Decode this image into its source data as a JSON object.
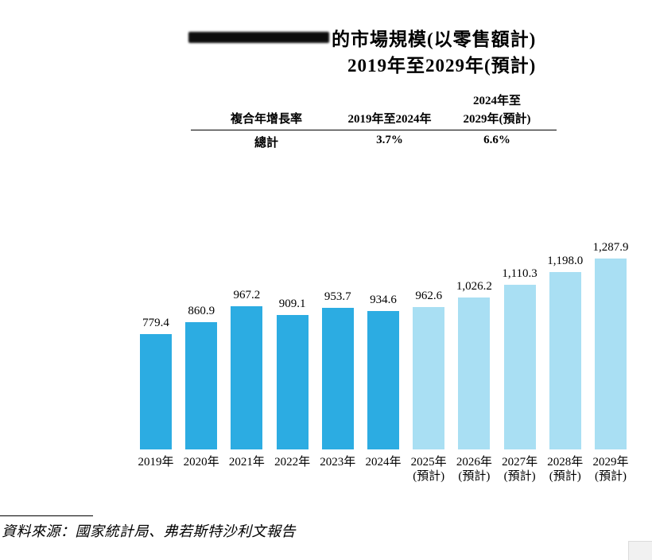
{
  "title": {
    "line1": "的市場規模(以零售額計)",
    "line2": "2019年至2029年(預計)"
  },
  "cagr_table": {
    "col1_header": "複合年增長率",
    "col2_header": "2019年至2024年",
    "col3_header_line1": "2024年至",
    "col3_header_line2": "2029年(預計)",
    "rows": [
      {
        "label": "總計",
        "cagr_2019_2024": "3.7%",
        "cagr_2024_2029": "6.6%"
      }
    ]
  },
  "chart_data": {
    "type": "bar",
    "title": "的市場規模(以零售額計)",
    "subtitle": "2019年至2029年(預計)",
    "categories": [
      "2019年",
      "2020年",
      "2021年",
      "2022年",
      "2023年",
      "2024年",
      "2025年",
      "2026年",
      "2027年",
      "2028年",
      "2029年"
    ],
    "category_notes": [
      "",
      "",
      "",
      "",
      "",
      "",
      "(預計)",
      "(預計)",
      "(預計)",
      "(預計)",
      "(預計)"
    ],
    "values": [
      779.4,
      860.9,
      967.2,
      909.1,
      953.7,
      934.6,
      962.6,
      1026.2,
      1110.3,
      1198.0,
      1287.9
    ],
    "value_labels": [
      "779.4",
      "860.9",
      "967.2",
      "909.1",
      "953.7",
      "934.6",
      "962.6",
      "1,026.2",
      "1,110.3",
      "1,198.0",
      "1,287.9"
    ],
    "colors": {
      "actual_bar": "#2CACE2",
      "forecast_bar": "#A9DFF3"
    },
    "forecast_start_index": 6,
    "ylim": [
      0,
      1400
    ],
    "grid": false,
    "legend": false
  },
  "source": {
    "text": "資料來源：國家統計局、弗若斯特沙利文報告"
  }
}
